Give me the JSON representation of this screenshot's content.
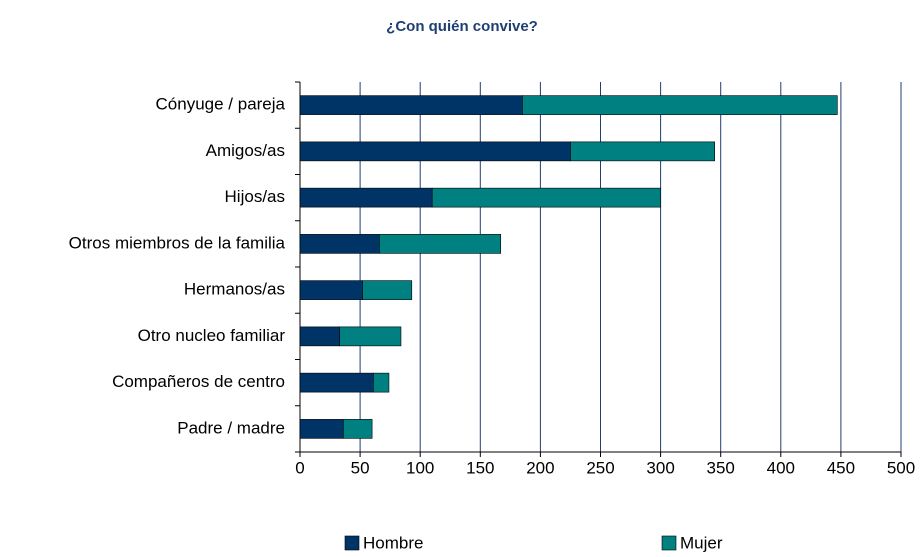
{
  "chart_data": {
    "type": "stacked_barh",
    "title": "¿Con quién convive?",
    "categories": [
      "Cónyuge / pareja",
      "Amigos/as",
      "Hijos/as",
      "Otros miembros de la familia",
      "Hermanos/as",
      "Otro nucleo familiar",
      "Compañeros de centro",
      "Padre / madre"
    ],
    "series": [
      {
        "name": "Hombre",
        "color": "#003366",
        "values": [
          185,
          225,
          110,
          66,
          52,
          33,
          61,
          36
        ]
      },
      {
        "name": "Mujer",
        "color": "#008080",
        "values": [
          262,
          120,
          190,
          101,
          41,
          51,
          13,
          24
        ]
      }
    ],
    "xlim": [
      0,
      500
    ],
    "xticks": [
      0,
      50,
      100,
      150,
      200,
      250,
      300,
      350,
      400,
      450,
      500
    ],
    "grid": true
  }
}
